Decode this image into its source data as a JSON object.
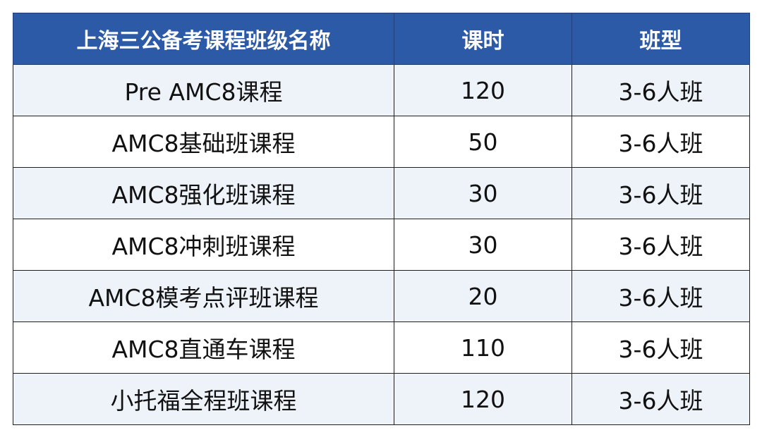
{
  "table": {
    "headers": [
      "上海三公备考课程班级名称",
      "课时",
      "班型"
    ],
    "rows": [
      {
        "name": "Pre AMC8课程",
        "hours": "120",
        "class_type": "3-6人班"
      },
      {
        "name": "AMC8基础班课程",
        "hours": "50",
        "class_type": "3-6人班"
      },
      {
        "name": "AMC8强化班课程",
        "hours": "30",
        "class_type": "3-6人班"
      },
      {
        "name": "AMC8冲刺班课程",
        "hours": "30",
        "class_type": "3-6人班"
      },
      {
        "name": "AMC8模考点评班课程",
        "hours": "20",
        "class_type": "3-6人班"
      },
      {
        "name": "AMC8直通车课程",
        "hours": "110",
        "class_type": "3-6人班"
      },
      {
        "name": "小托福全程班课程",
        "hours": "120",
        "class_type": "3-6人班"
      }
    ],
    "colors": {
      "header_bg": "#2d5aa6",
      "header_text": "#ffffff",
      "row_alt_bg": "#eef3fa",
      "border": "#1f1f1f"
    }
  }
}
